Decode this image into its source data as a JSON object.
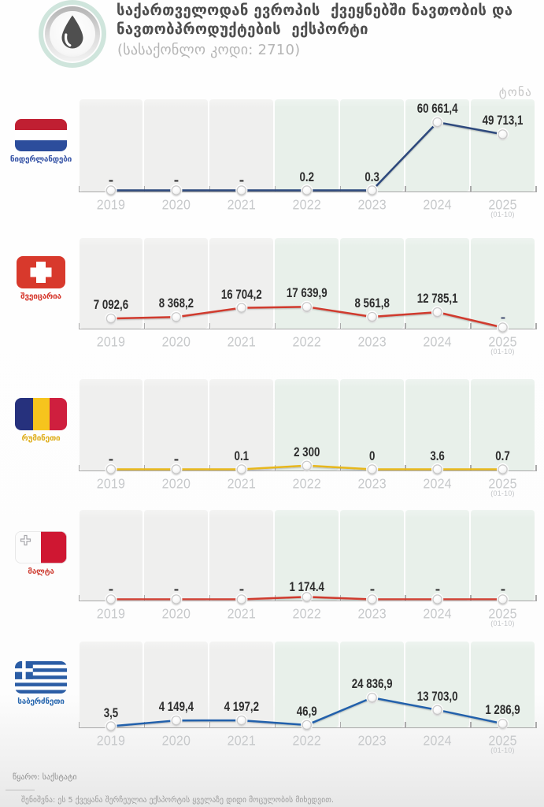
{
  "header": {
    "title_lines": [
      "საქართველოდან ევროპის  ქვეყნებში ნავთობის და",
      "ნავთობპროდუქტების  ექსპორტი"
    ],
    "subtitle": "(სასაქონლო კოდი: 2710)",
    "unit_label": "ტონა",
    "icon": "oil-drop-icon"
  },
  "years": [
    "2019",
    "2020",
    "2021",
    "2022",
    "2023",
    "2024",
    "2025"
  ],
  "year_note": "(01-10)",
  "colors": {
    "title_text": "#4d4d4d",
    "muted_text": "#b5b5b5",
    "year_text": "#c7c9cb",
    "value_text": "#2d2d2d",
    "panel_gray": "#efefee",
    "panel_mint": "#e8f0ea",
    "axis_gray": "#a8a8a8"
  },
  "chart_data": [
    {
      "type": "line",
      "country": "ნიდერლანდები",
      "flag": "netherlands",
      "line_color": "#2d4a7d",
      "label_color": "#3a57a8",
      "categories": [
        "2019",
        "2020",
        "2021",
        "2022",
        "2023",
        "2024",
        "2025 (01-10)"
      ],
      "values": [
        null,
        null,
        null,
        0.2,
        0.3,
        60661.4,
        49713.1
      ],
      "labels": [
        "-",
        "-",
        "-",
        "0.2",
        "0.3",
        "60 661,4",
        "49 713,1"
      ],
      "ylabel": "ტონა",
      "ylim": [
        0,
        81800
      ]
    },
    {
      "type": "line",
      "country": "შვეიცარია",
      "flag": "switzerland",
      "line_color": "#d03a2e",
      "label_color": "#d6392e",
      "categories": [
        "2019",
        "2020",
        "2021",
        "2022",
        "2023",
        "2024",
        "2025 (01-10)"
      ],
      "values": [
        7092.6,
        8368.2,
        16704.2,
        17639.9,
        8561.8,
        12785.1,
        null
      ],
      "labels": [
        "7 092,6",
        "8 368,2",
        "16 704,2",
        "17 639,9",
        "8 561,8",
        "12 785,1",
        "-"
      ],
      "dash_colors": {
        "6": "#404a6e"
      },
      "ylabel": "ტონა",
      "ylim": [
        0,
        81800
      ]
    },
    {
      "type": "line",
      "country": "რუმინეთი",
      "flag": "romania",
      "line_color": "#e7b71e",
      "label_color": "#dfaf1e",
      "categories": [
        "2019",
        "2020",
        "2021",
        "2022",
        "2023",
        "2024",
        "2025 (01-10)"
      ],
      "values": [
        null,
        null,
        0.1,
        2300,
        0,
        3.6,
        0.7
      ],
      "labels": [
        "-",
        "-",
        "0.1",
        "2 300",
        "0",
        "3.6",
        "0.7"
      ],
      "ylabel": "ტონა",
      "ylim": [
        0,
        81800
      ]
    },
    {
      "type": "line",
      "country": "მალტა",
      "flag": "malta",
      "line_color": "#cf3b2f",
      "label_color": "#d0453a",
      "categories": [
        "2019",
        "2020",
        "2021",
        "2022",
        "2023",
        "2024",
        "2025 (01-10)"
      ],
      "values": [
        null,
        null,
        null,
        1174.4,
        null,
        null,
        null
      ],
      "labels": [
        "-",
        "-",
        "-",
        "1 174.4",
        "-",
        "-",
        "-"
      ],
      "ylabel": "ტონა",
      "ylim": [
        0,
        81800
      ]
    },
    {
      "type": "line",
      "country": "საბერძნეთი",
      "flag": "greece",
      "line_color": "#2161ab",
      "label_color": "#2b69b0",
      "categories": [
        "2019",
        "2020",
        "2021",
        "2022",
        "2023",
        "2024",
        "2025 (01-10)"
      ],
      "values": [
        3.5,
        4149.4,
        4197.2,
        46.9,
        24836.9,
        13703.0,
        1286.9
      ],
      "labels": [
        "3,5",
        "4 149,4",
        "4 197,2",
        "46,9",
        "24 836,9",
        "13 703,0",
        "1 286,9"
      ],
      "ylabel": "ტონა",
      "ylim": [
        0,
        81800
      ]
    }
  ],
  "footer": {
    "source": "წყარო: საქსტატი",
    "note": "შენიშვნა: ეს 5 ქვეყანა შერჩეულია ექსპორტის ყველაზე დიდი მოცულობის მიხედვით."
  }
}
